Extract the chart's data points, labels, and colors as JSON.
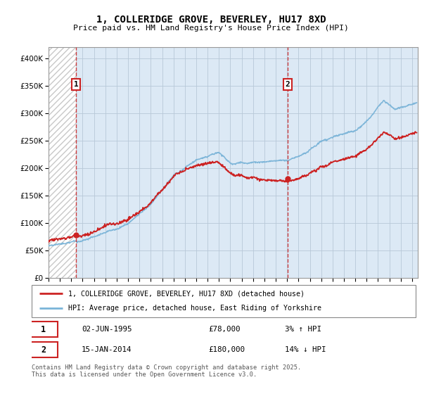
{
  "title": "1, COLLERIDGE GROVE, BEVERLEY, HU17 8XD",
  "subtitle": "Price paid vs. HM Land Registry's House Price Index (HPI)",
  "legend_line1": "1, COLLERIDGE GROVE, BEVERLEY, HU17 8XD (detached house)",
  "legend_line2": "HPI: Average price, detached house, East Riding of Yorkshire",
  "annotation1_date": "02-JUN-1995",
  "annotation1_price": "£78,000",
  "annotation1_hpi": "3% ↑ HPI",
  "annotation2_date": "15-JAN-2014",
  "annotation2_price": "£180,000",
  "annotation2_hpi": "14% ↓ HPI",
  "footer": "Contains HM Land Registry data © Crown copyright and database right 2025.\nThis data is licensed under the Open Government Licence v3.0.",
  "hpi_color": "#7ab4d8",
  "price_color": "#cc2222",
  "annotation_color": "#cc2222",
  "bg_blue": "#dce9f5",
  "bg_hatch_color": "#c8c8c8",
  "ylim": [
    0,
    420000
  ],
  "yticks": [
    0,
    50000,
    100000,
    150000,
    200000,
    250000,
    300000,
    350000,
    400000
  ],
  "xlim_left": 1993.0,
  "xlim_right": 2025.5,
  "sale1_year": 1995.42,
  "sale1_price": 78000,
  "sale2_year": 2014.04,
  "sale2_price": 180000
}
